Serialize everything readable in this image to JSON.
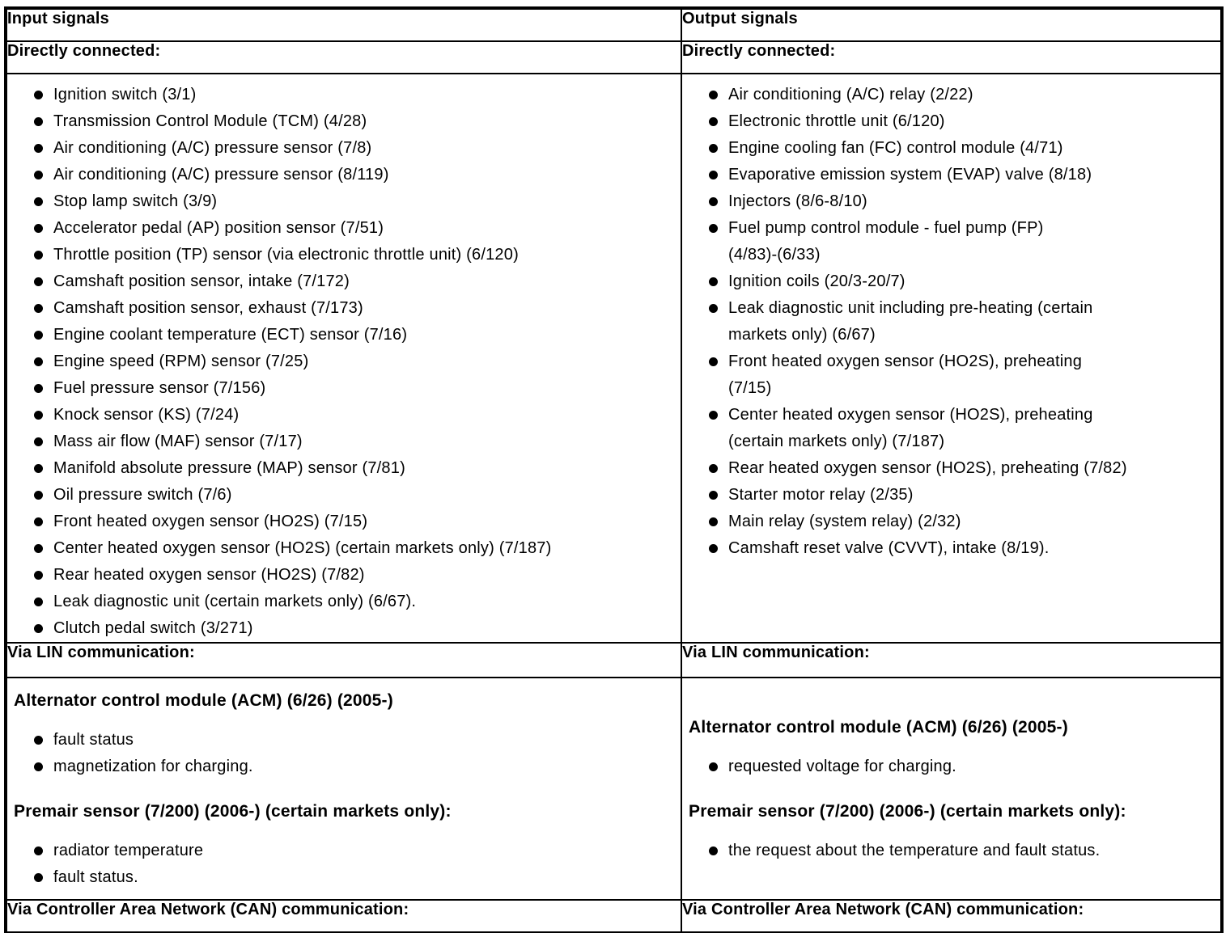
{
  "input_column": {
    "header": "Input signals",
    "directly_connected": {
      "label": "Directly connected:",
      "items": [
        "Ignition switch (3/1)",
        "Transmission Control Module (TCM) (4/28)",
        "Air conditioning (A/C) pressure sensor (7/8)",
        "Air conditioning (A/C) pressure sensor (8/119)",
        "Stop lamp switch (3/9)",
        "Accelerator pedal (AP) position sensor (7/51)",
        "Throttle position (TP) sensor (via electronic throttle unit) (6/120)",
        "Camshaft position sensor, intake (7/172)",
        "Camshaft position sensor, exhaust (7/173)",
        "Engine coolant temperature (ECT) sensor (7/16)",
        "Engine speed (RPM) sensor (7/25)",
        "Fuel pressure sensor (7/156)",
        "Knock sensor (KS) (7/24)",
        "Mass air flow (MAF) sensor (7/17)",
        "Manifold absolute pressure (MAP) sensor (7/81)",
        "Oil pressure switch (7/6)",
        "Front heated oxygen sensor (HO2S) (7/15)",
        "Center heated oxygen sensor (HO2S) (certain markets only) (7/187)",
        "Rear heated oxygen sensor (HO2S) (7/82)",
        "Leak diagnostic unit (certain markets only) (6/67).",
        "Clutch pedal switch (3/271)"
      ]
    },
    "via_lin": {
      "label": "Via LIN communication:",
      "groups": [
        {
          "heading": "Alternator control module (ACM) (6/26) (2005-)",
          "items": [
            "fault status",
            "magnetization for charging."
          ]
        },
        {
          "heading": "Premair sensor (7/200) (2006-) (certain markets only):",
          "items": [
            "radiator temperature",
            "fault status."
          ]
        }
      ]
    },
    "via_can": {
      "label": "Via Controller Area Network (CAN) communication:"
    }
  },
  "output_column": {
    "header": "Output signals",
    "directly_connected": {
      "label": "Directly connected:",
      "items": [
        "Air conditioning (A/C) relay (2/22)",
        "Electronic throttle unit (6/120)",
        "Engine cooling fan (FC) control module (4/71)",
        "Evaporative emission system (EVAP) valve (8/18)",
        "Injectors (8/6-8/10)",
        "Fuel pump control module - fuel pump (FP)\n(4/83)-(6/33)",
        "Ignition coils (20/3-20/7)",
        "Leak diagnostic unit including pre-heating (certain\nmarkets only) (6/67)",
        "Front heated oxygen sensor (HO2S), preheating\n(7/15)",
        "Center heated oxygen sensor (HO2S), preheating\n(certain markets only) (7/187)",
        "Rear heated oxygen sensor (HO2S), preheating (7/82)",
        "Starter motor relay (2/35)",
        "Main relay (system relay) (2/32)",
        "Camshaft reset valve (CVVT), intake (8/19)."
      ]
    },
    "via_lin": {
      "label": "Via LIN communication:",
      "groups": [
        {
          "heading": "Alternator control module (ACM) (6/26) (2005-)",
          "items": [
            "requested voltage for charging."
          ]
        },
        {
          "heading": "Premair sensor (7/200) (2006-) (certain markets only):",
          "items": [
            "the request about the temperature and fault status."
          ]
        }
      ]
    },
    "via_can": {
      "label": "Via Controller Area Network (CAN) communication:"
    }
  }
}
